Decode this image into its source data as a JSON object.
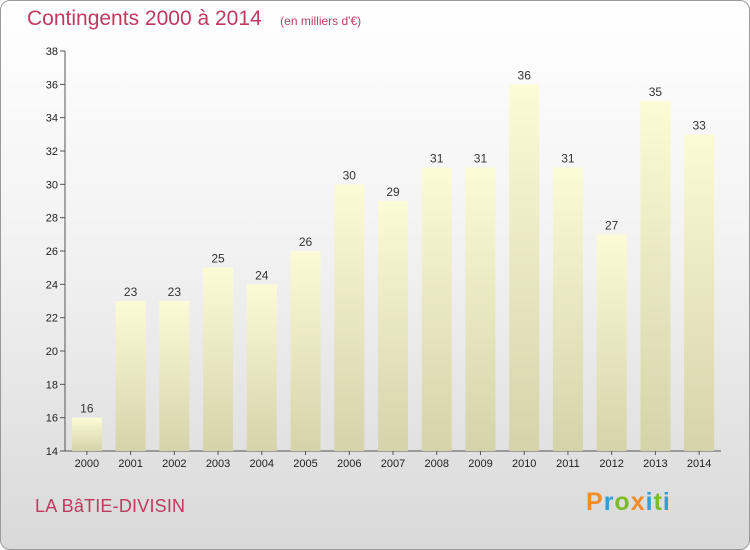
{
  "header": {
    "title": "Contingents 2000 à 2014",
    "subtitle": "(en milliers d'€)"
  },
  "footer": {
    "place_name": "LA BâTIE-DIVISIN",
    "logo_text": "Proxiti"
  },
  "colors": {
    "title": "#c0395e",
    "bar_top": "#fbfbd6",
    "bar_bottom": "#d5d3a9",
    "logo_letters": [
      "#f28c28",
      "#2e9fd8",
      "#7cbb2a",
      "#f28c28",
      "#2e9fd8",
      "#7cbb2a",
      "#2e9fd8"
    ]
  },
  "chart_data": {
    "type": "bar",
    "title": "Contingents 2000 à 2014",
    "subtitle": "(en milliers d'€)",
    "categories": [
      "2000",
      "2001",
      "2002",
      "2003",
      "2004",
      "2005",
      "2006",
      "2007",
      "2008",
      "2009",
      "2010",
      "2011",
      "2012",
      "2013",
      "2014"
    ],
    "values": [
      16,
      23,
      23,
      25,
      24,
      26,
      30,
      29,
      31,
      31,
      36,
      31,
      27,
      35,
      33
    ],
    "ylim": [
      14,
      38
    ],
    "yticks": [
      14,
      16,
      18,
      20,
      22,
      24,
      26,
      28,
      30,
      32,
      34,
      36,
      38
    ],
    "grid": false,
    "data_labels": true
  }
}
